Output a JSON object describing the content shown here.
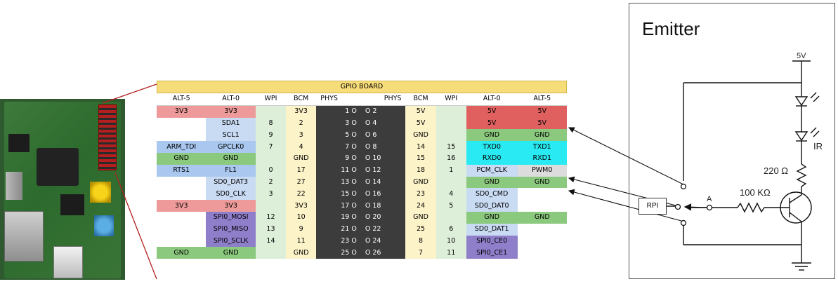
{
  "gpio_board": {
    "title": "GPIO BOARD",
    "headers": [
      "ALT-5",
      "ALT-0",
      "WPI",
      "BCM",
      "PHYS",
      "PHYS",
      "BCM",
      "WPI",
      "ALT-0",
      "ALT-5"
    ],
    "rows": [
      {
        "l_alt5": "3V3",
        "l_alt0": "3V3",
        "l_wpi": "",
        "l_bcm": "3V3",
        "l_phys": "1 O",
        "r_phys": "O 2",
        "r_bcm": "5V",
        "r_wpi": "",
        "r_alt0": "5V",
        "r_alt5": "5V",
        "l_alt5_c": "c-red",
        "l_alt0_c": "c-red",
        "r_alt0_c": "c-red2",
        "r_alt5_c": "c-red2"
      },
      {
        "l_alt5": "",
        "l_alt0": "SDA1",
        "l_wpi": "8",
        "l_bcm": "2",
        "l_phys": "3 O",
        "r_phys": "O 4",
        "r_bcm": "5V",
        "r_wpi": "",
        "r_alt0": "5V",
        "r_alt5": "5V",
        "l_alt5_c": "c-none",
        "l_alt0_c": "c-lblue",
        "r_alt0_c": "c-red2",
        "r_alt5_c": "c-red2"
      },
      {
        "l_alt5": "",
        "l_alt0": "SCL1",
        "l_wpi": "9",
        "l_bcm": "3",
        "l_phys": "5 O",
        "r_phys": "O 6",
        "r_bcm": "GND",
        "r_wpi": "",
        "r_alt0": "GND",
        "r_alt5": "GND",
        "l_alt5_c": "c-none",
        "l_alt0_c": "c-lblue",
        "r_alt0_c": "c-green",
        "r_alt5_c": "c-green"
      },
      {
        "l_alt5": "ARM_TDI",
        "l_alt0": "GPCLK0",
        "l_wpi": "7",
        "l_bcm": "4",
        "l_phys": "7 O",
        "r_phys": "O 8",
        "r_bcm": "14",
        "r_wpi": "15",
        "r_alt0": "TXD0",
        "r_alt5": "TXD1",
        "l_alt5_c": "c-blue",
        "l_alt0_c": "c-blue",
        "r_alt0_c": "c-cyan",
        "r_alt5_c": "c-cyan"
      },
      {
        "l_alt5": "GND",
        "l_alt0": "GND",
        "l_wpi": "",
        "l_bcm": "GND",
        "l_phys": "9 O",
        "r_phys": "O 10",
        "r_bcm": "15",
        "r_wpi": "16",
        "r_alt0": "RXD0",
        "r_alt5": "RXD1",
        "l_alt5_c": "c-green",
        "l_alt0_c": "c-green",
        "r_alt0_c": "c-cyan",
        "r_alt5_c": "c-cyan"
      },
      {
        "l_alt5": "RTS1",
        "l_alt0": "FL1",
        "l_wpi": "0",
        "l_bcm": "17",
        "l_phys": "11 O",
        "r_phys": "O 12",
        "r_bcm": "18",
        "r_wpi": "1",
        "r_alt0": "PCM_CLK",
        "r_alt5": "PWM0",
        "l_alt5_c": "c-blue",
        "l_alt0_c": "c-blue",
        "r_alt0_c": "c-lblue",
        "r_alt5_c": "c-gray"
      },
      {
        "l_alt5": "",
        "l_alt0": "SD0_DAT3",
        "l_wpi": "2",
        "l_bcm": "27",
        "l_phys": "13 O",
        "r_phys": "O 14",
        "r_bcm": "GND",
        "r_wpi": "",
        "r_alt0": "GND",
        "r_alt5": "GND",
        "l_alt5_c": "c-none",
        "l_alt0_c": "c-lblue",
        "r_alt0_c": "c-green",
        "r_alt5_c": "c-green"
      },
      {
        "l_alt5": "",
        "l_alt0": "SD0_CLK",
        "l_wpi": "3",
        "l_bcm": "22",
        "l_phys": "15 O",
        "r_phys": "O 16",
        "r_bcm": "23",
        "r_wpi": "4",
        "r_alt0": "SD0_CMD",
        "r_alt5": "",
        "l_alt5_c": "c-none",
        "l_alt0_c": "c-lblue",
        "r_alt0_c": "c-lblue",
        "r_alt5_c": "c-none"
      },
      {
        "l_alt5": "3V3",
        "l_alt0": "3V3",
        "l_wpi": "",
        "l_bcm": "3V3",
        "l_phys": "17 O",
        "r_phys": "O 18",
        "r_bcm": "24",
        "r_wpi": "5",
        "r_alt0": "SD0_DAT0",
        "r_alt5": "",
        "l_alt5_c": "c-red",
        "l_alt0_c": "c-red",
        "r_alt0_c": "c-lblue",
        "r_alt5_c": "c-none"
      },
      {
        "l_alt5": "",
        "l_alt0": "SPI0_MOSI",
        "l_wpi": "12",
        "l_bcm": "10",
        "l_phys": "19 O",
        "r_phys": "O 20",
        "r_bcm": "GND",
        "r_wpi": "",
        "r_alt0": "GND",
        "r_alt5": "GND",
        "l_alt5_c": "c-none",
        "l_alt0_c": "c-purple",
        "r_alt0_c": "c-green",
        "r_alt5_c": "c-green"
      },
      {
        "l_alt5": "",
        "l_alt0": "SPI0_MISO",
        "l_wpi": "13",
        "l_bcm": "9",
        "l_phys": "21 O",
        "r_phys": "O 22",
        "r_bcm": "25",
        "r_wpi": "6",
        "r_alt0": "SD0_DAT1",
        "r_alt5": "",
        "l_alt5_c": "c-none",
        "l_alt0_c": "c-purple",
        "r_alt0_c": "c-lblue",
        "r_alt5_c": "c-none"
      },
      {
        "l_alt5": "",
        "l_alt0": "SPI0_SCLK",
        "l_wpi": "14",
        "l_bcm": "11",
        "l_phys": "23 O",
        "r_phys": "O 24",
        "r_bcm": "8",
        "r_wpi": "10",
        "r_alt0": "SPI0_CE0",
        "r_alt5": "",
        "l_alt5_c": "c-none",
        "l_alt0_c": "c-purple",
        "r_alt0_c": "c-purple",
        "r_alt5_c": "c-none"
      },
      {
        "l_alt5": "GND",
        "l_alt0": "GND",
        "l_wpi": "",
        "l_bcm": "GND",
        "l_phys": "25 O",
        "r_phys": "O 26",
        "r_bcm": "7",
        "r_wpi": "11",
        "r_alt0": "SPI0_CE1",
        "r_alt5": "",
        "l_alt5_c": "c-green",
        "l_alt0_c": "c-green",
        "r_alt0_c": "c-purple",
        "r_alt5_c": "c-none"
      }
    ]
  },
  "emitter": {
    "title": "Emitter",
    "supply_label": "5V",
    "ir_label": "IR",
    "resistor_top": "220 Ω",
    "resistor_base": "100 KΩ",
    "node_label": "A",
    "rpi_label": "RPI"
  }
}
